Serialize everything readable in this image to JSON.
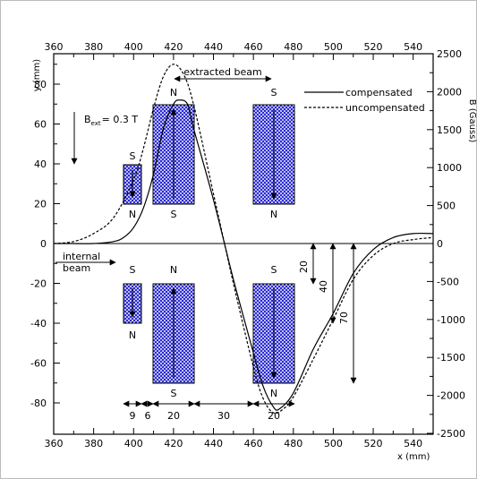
{
  "axes": {
    "x_title": "x (mm)",
    "y_title": "y (mm)",
    "y2_title": "B (Gauss)",
    "x_ticks": [
      "360",
      "380",
      "400",
      "420",
      "440",
      "460",
      "480",
      "500",
      "520",
      "540"
    ],
    "y_ticks": [
      "80",
      "60",
      "40",
      "20",
      "0",
      "-20",
      "-40",
      "-60",
      "-80"
    ],
    "y2_ticks": [
      "2500",
      "2000",
      "1500",
      "1000",
      "500",
      "0",
      "-500",
      "-1000",
      "-1500",
      "-2000",
      "-2500"
    ]
  },
  "labels": {
    "bext_prefix": "B",
    "bext_sub": "ext",
    "bext_value": "= 0.3 T",
    "extracted_beam": "extracted beam",
    "internal_line1": "internal",
    "internal_line2": "beam"
  },
  "legend": {
    "compensated": "compensated",
    "uncompensated": "uncompensated"
  },
  "poles": {
    "upper_left_small_top": "S",
    "upper_left_small_bottom": "N",
    "upper_big1_top": "N",
    "upper_big1_bottom": "S",
    "upper_big2_top": "S",
    "upper_big2_bottom": "N",
    "lower_left_small_top": "S",
    "lower_left_small_bottom": "N",
    "lower_big1_top": "N",
    "lower_big1_bottom": "S",
    "lower_big2_top": "S",
    "lower_big2_bottom": "N"
  },
  "dimensions": {
    "widths": [
      "9",
      "6",
      "20",
      "30",
      "20"
    ],
    "heights": [
      "20",
      "40",
      "70"
    ]
  },
  "colors": {
    "magnet_fill": "#1f1fd0",
    "line": "#000000"
  },
  "chart_data": {
    "type": "line",
    "xlim": [
      360,
      550
    ],
    "ylim": [
      -90,
      95
    ],
    "y2lim": [
      -2500,
      2500
    ],
    "series": [
      {
        "name": "compensated",
        "x": [
          360,
          370,
          380,
          390,
          395,
          400,
          405,
          410,
          415,
          420,
          423,
          427,
          430,
          440,
          450,
          460,
          465,
          470,
          473,
          480,
          490,
          500,
          510,
          520,
          530,
          540,
          550
        ],
        "y": [
          0,
          0,
          0,
          1,
          3,
          8,
          18,
          35,
          58,
          70,
          72,
          70,
          58,
          22,
          -18,
          -55,
          -72,
          -82,
          -83,
          -75,
          -53,
          -35,
          -15,
          -3,
          3,
          5,
          5
        ]
      },
      {
        "name": "uncompensated",
        "x": [
          360,
          370,
          380,
          390,
          400,
          405,
          410,
          415,
          420,
          425,
          430,
          440,
          450,
          460,
          465,
          470,
          475,
          480,
          490,
          500,
          510,
          520,
          530,
          540,
          550
        ],
        "y": [
          0,
          1,
          5,
          13,
          32,
          48,
          68,
          84,
          90,
          85,
          70,
          25,
          -20,
          -62,
          -78,
          -85,
          -83,
          -77,
          -58,
          -38,
          -18,
          -6,
          0,
          2,
          3
        ]
      }
    ]
  }
}
